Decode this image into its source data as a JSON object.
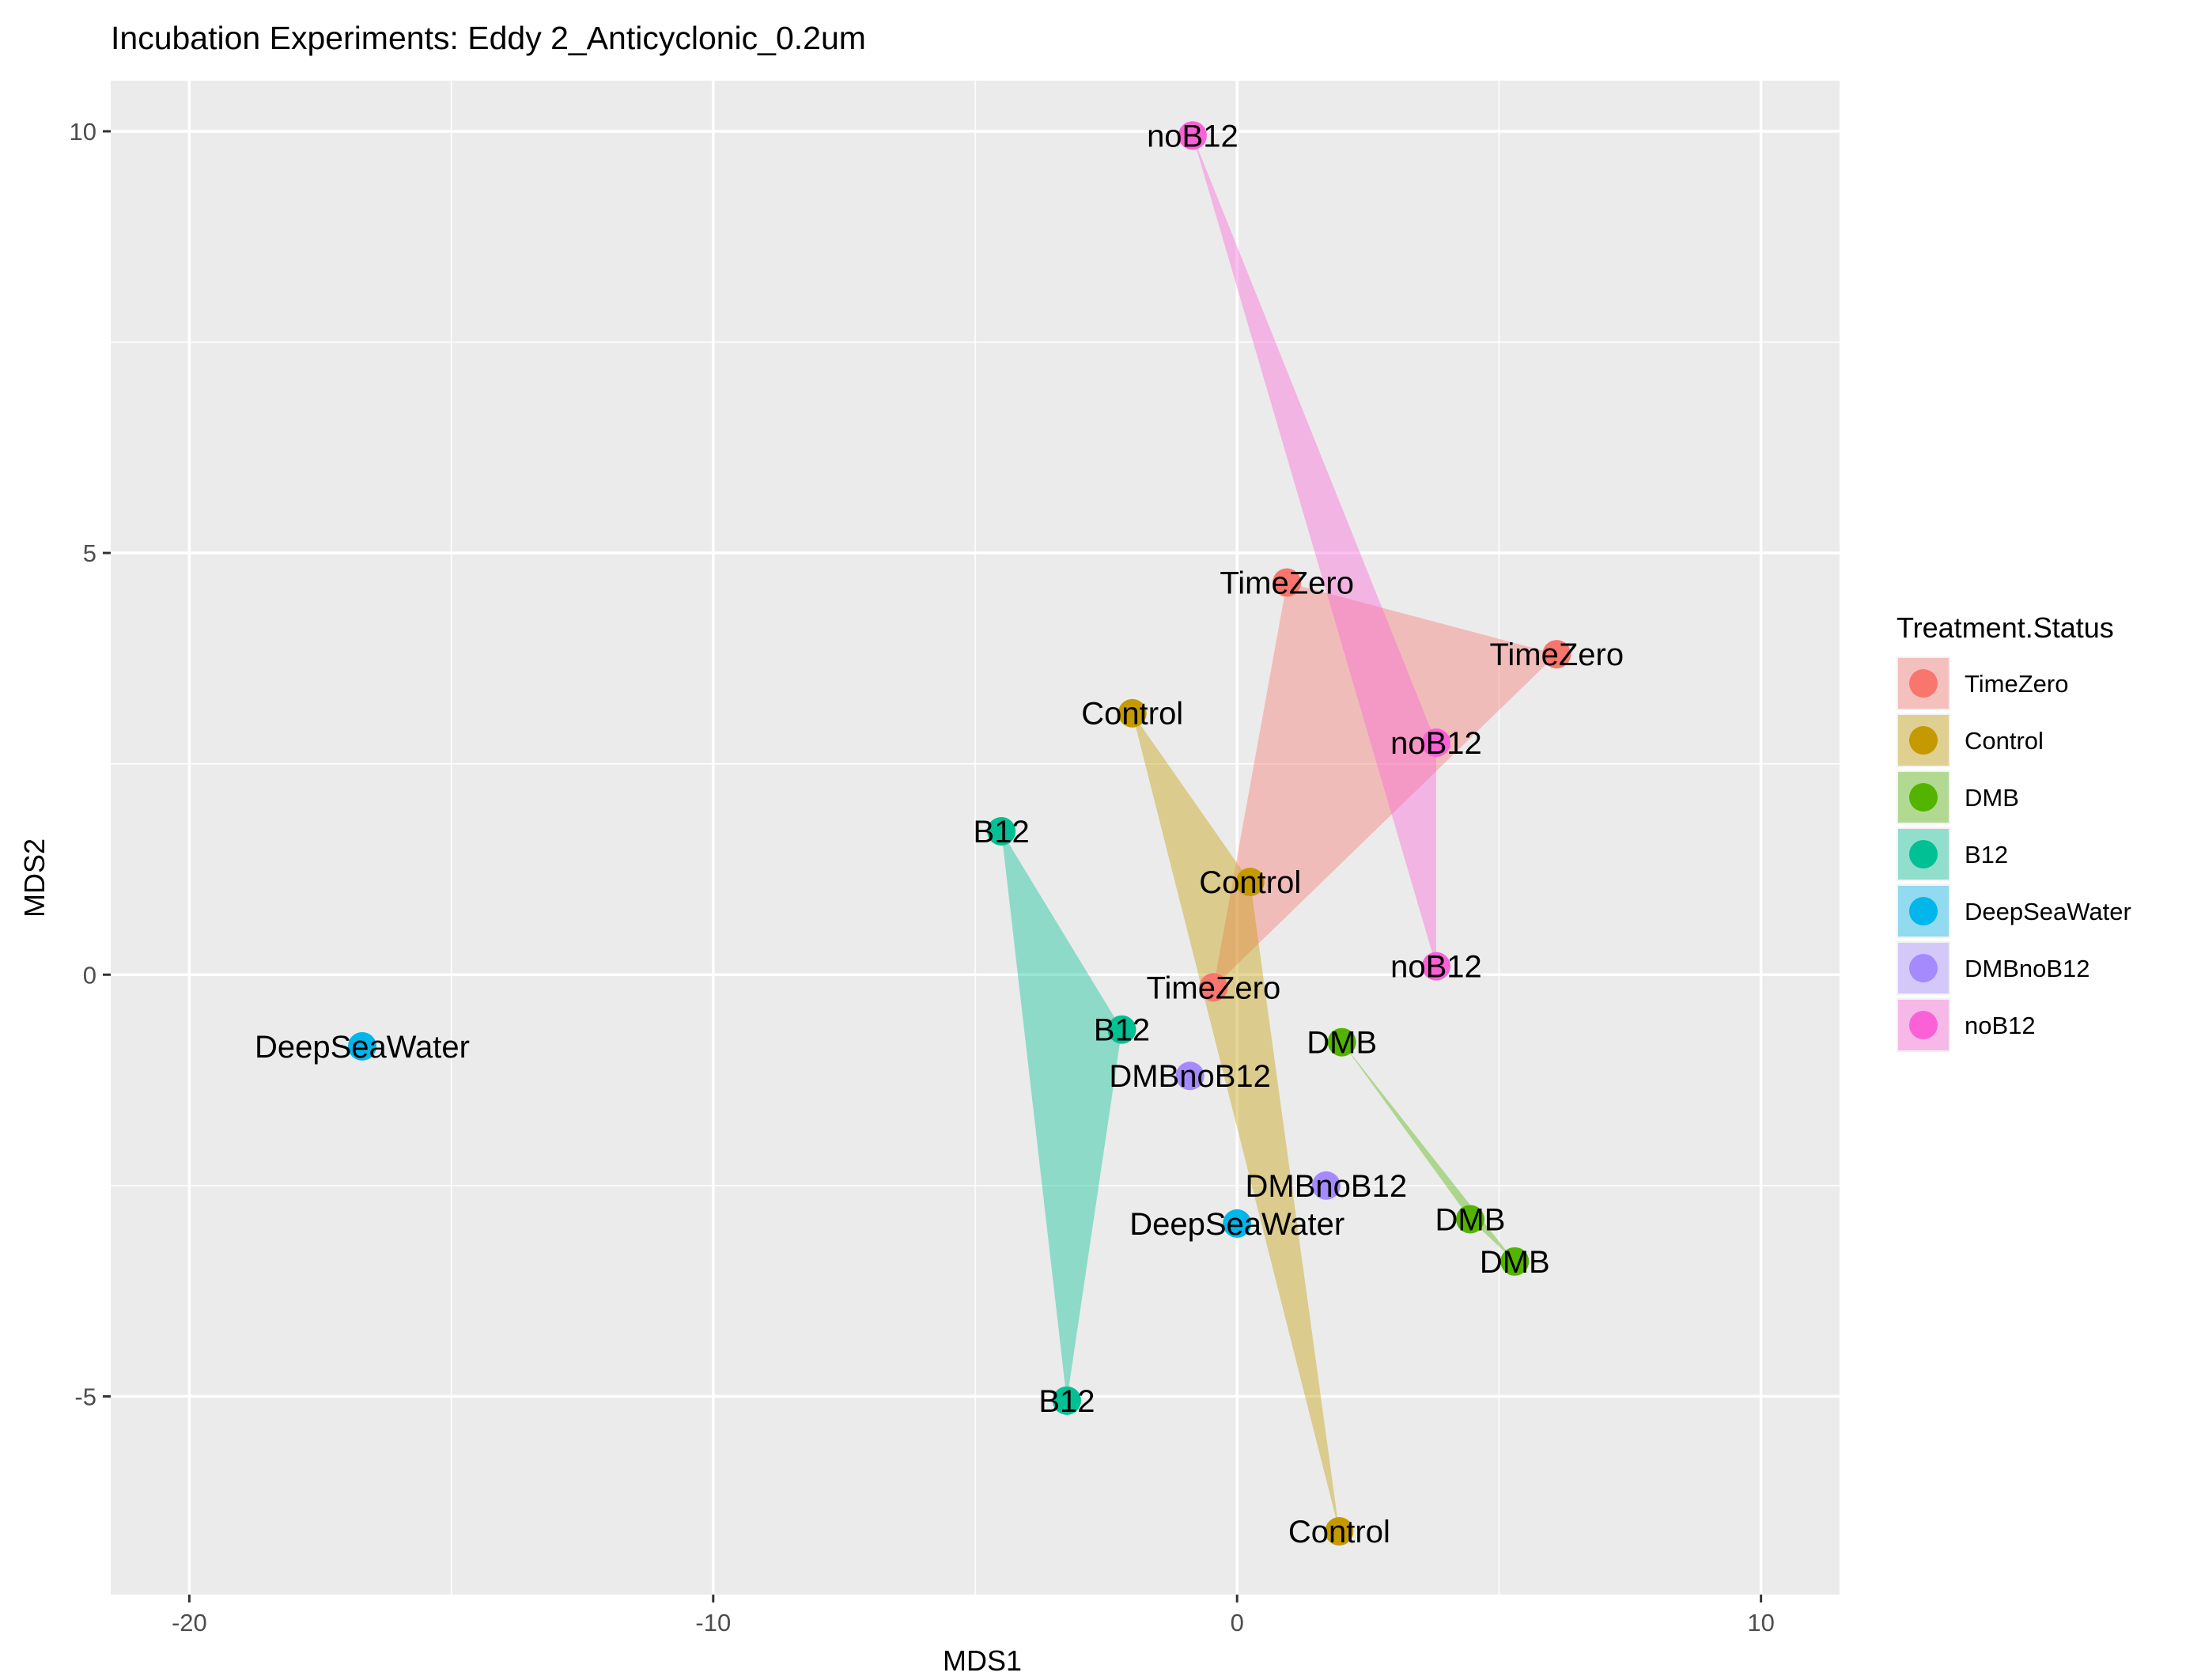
{
  "chart_data": {
    "type": "scatter",
    "title": "Incubation Experiments: Eddy 2_Anticyclonic_0.2um",
    "xlabel": "MDS1",
    "ylabel": "MDS2",
    "xlim": [
      -21.5,
      11.5
    ],
    "ylim": [
      -7.35,
      10.6
    ],
    "x_ticks": [
      {
        "value": -20,
        "label": "-20"
      },
      {
        "value": -10,
        "label": "-10"
      },
      {
        "value": 0,
        "label": "0"
      },
      {
        "value": 10,
        "label": "10"
      }
    ],
    "y_ticks": [
      {
        "value": -5,
        "label": "-5"
      },
      {
        "value": 0,
        "label": "0"
      },
      {
        "value": 5,
        "label": "5"
      },
      {
        "value": 10,
        "label": "10"
      }
    ],
    "grid": true,
    "legend": {
      "title": "Treatment.Status",
      "position": "right"
    },
    "series": [
      {
        "name": "TimeZero",
        "color": "#F8766D",
        "points": [
          {
            "x": 0.95,
            "y": 4.65
          },
          {
            "x": 6.1,
            "y": 3.8
          },
          {
            "x": -0.45,
            "y": -0.15
          }
        ]
      },
      {
        "name": "Control",
        "color": "#C49A00",
        "points": [
          {
            "x": -2.0,
            "y": 3.1
          },
          {
            "x": 0.25,
            "y": 1.1
          },
          {
            "x": 1.95,
            "y": -6.6
          }
        ]
      },
      {
        "name": "DMB",
        "color": "#53B400",
        "points": [
          {
            "x": 2.0,
            "y": -0.8
          },
          {
            "x": 4.45,
            "y": -2.9
          },
          {
            "x": 5.3,
            "y": -3.4
          }
        ]
      },
      {
        "name": "B12",
        "color": "#00C094",
        "points": [
          {
            "x": -4.5,
            "y": 1.7
          },
          {
            "x": -2.2,
            "y": -0.65
          },
          {
            "x": -3.25,
            "y": -5.05
          }
        ]
      },
      {
        "name": "DeepSeaWater",
        "color": "#00B6EB",
        "points": [
          {
            "x": -16.7,
            "y": -0.85
          },
          {
            "x": 0.0,
            "y": -2.95
          }
        ]
      },
      {
        "name": "DMBnoB12",
        "color": "#A58AFF",
        "points": [
          {
            "x": -0.9,
            "y": -1.2
          },
          {
            "x": 1.7,
            "y": -2.5
          }
        ]
      },
      {
        "name": "noB12",
        "color": "#FB61D7",
        "points": [
          {
            "x": -0.85,
            "y": 9.95
          },
          {
            "x": 3.8,
            "y": 2.75
          },
          {
            "x": 3.8,
            "y": 0.1
          }
        ]
      }
    ]
  }
}
